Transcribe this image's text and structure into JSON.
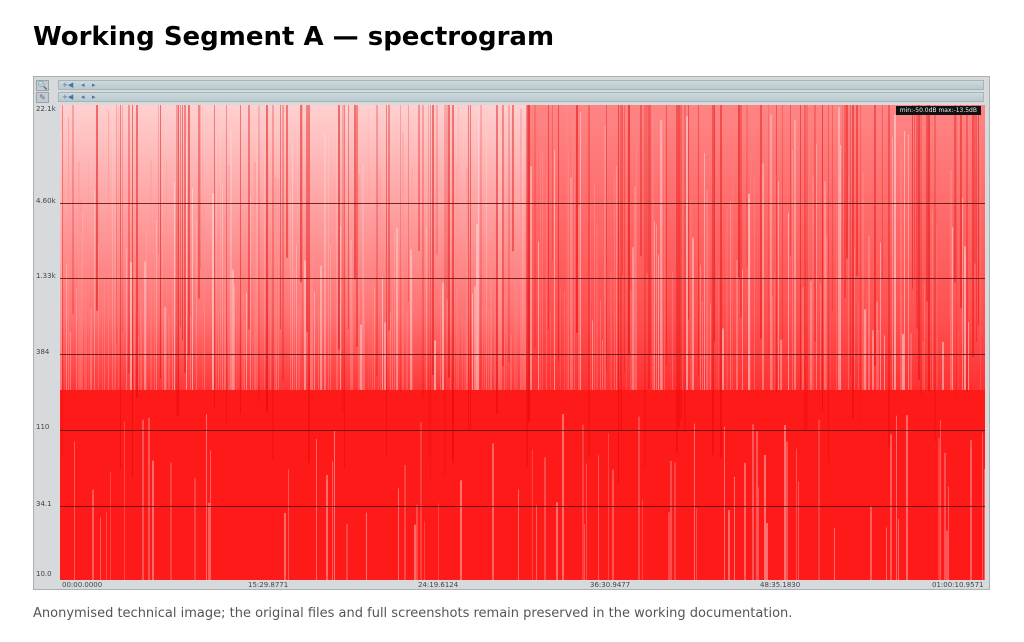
{
  "page": {
    "title": "Working Segment A — spectrogram",
    "caption": "Anonymised technical image; the original files and full screenshots remain preserved in the working documentation."
  },
  "toolbar": {
    "zoom_icon": "zoom-icon",
    "edit_icon": "pencil-icon",
    "track_controls": [
      "+◀",
      "◂",
      "▸"
    ]
  },
  "overlay": {
    "text": "min:-50.0dB  max:-13.5dB"
  },
  "spectrogram": {
    "y_ticks": [
      "22.1k",
      "4.60k",
      "1.33k",
      "384",
      "110",
      "34.1",
      "10.0"
    ],
    "x_ticks": [
      "00:00.0000",
      "15:29.8771",
      "24:19.6124",
      "36:30.9477",
      "48:35.1830",
      "01:00:10.9571"
    ],
    "colors": {
      "base": "#ff1a1a",
      "light": "#ffd0d0",
      "grid": "#5a1010"
    }
  }
}
